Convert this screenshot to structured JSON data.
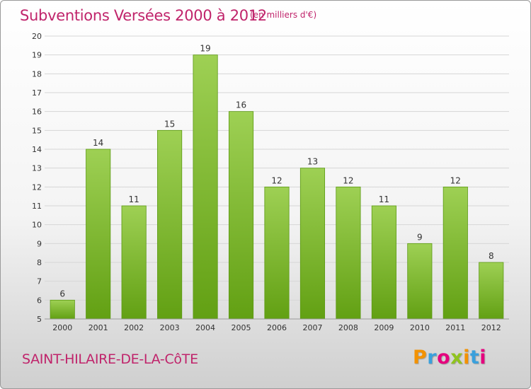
{
  "title": "Subventions Versées 2000 à 2012",
  "subtitle": "(en milliers d'€)",
  "commune": "SAINT-HILAIRE-DE-LA-CôTE",
  "logo": {
    "text": "Proxiti",
    "letter_colors": [
      "#f39200",
      "#3aa0dc",
      "#e5007e",
      "#8fc31f",
      "#f39200",
      "#3aa0dc",
      "#e5007e"
    ]
  },
  "colors": {
    "bar_top": "#9ed054",
    "bar_bottom": "#62a013",
    "bar_edge": "#5c9a14",
    "grid": "#d6d6d6",
    "axis_text": "#333333",
    "accent": "#c0246b"
  },
  "chart_data": {
    "type": "bar",
    "categories": [
      "2000",
      "2001",
      "2002",
      "2003",
      "2004",
      "2005",
      "2006",
      "2007",
      "2008",
      "2009",
      "2010",
      "2011",
      "2012"
    ],
    "values": [
      6,
      14,
      11,
      15,
      19,
      16,
      12,
      13,
      12,
      11,
      9,
      12,
      8
    ],
    "data_labels": [
      "6",
      "14",
      "11",
      "15",
      "19",
      "16",
      "12",
      "13",
      "12",
      "11",
      "9",
      "12",
      "8"
    ],
    "y_ticks": [
      "5",
      "6",
      "7",
      "8",
      "9",
      "10",
      "11",
      "12",
      "13",
      "14",
      "15",
      "16",
      "17",
      "18",
      "19",
      "20"
    ],
    "title": "Subventions Versées 2000 à 2012",
    "xlabel": "",
    "ylabel": "",
    "ylim": [
      5,
      20
    ],
    "grid": true,
    "legend": "none"
  }
}
